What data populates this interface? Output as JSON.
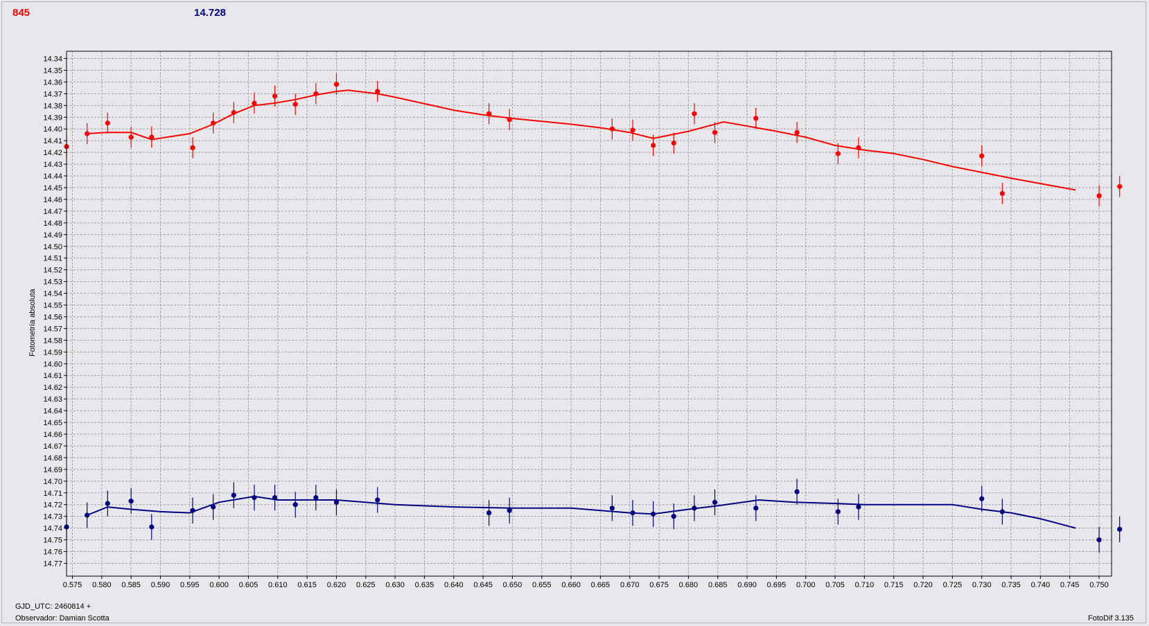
{
  "header": {
    "value_red": "845",
    "value_blue": "14.728"
  },
  "footer": {
    "gjd_label": "GJD_UTC: 2460814 +",
    "observer_label": "Observador: Damian Scotta",
    "app_version": "FotoDif 3.135"
  },
  "colors": {
    "series_red": "#ff0000",
    "series_blue": "#000080",
    "grid": "#a0a0a0",
    "plot_bg": "#e8e8ec"
  },
  "chart_data": {
    "type": "scatter",
    "title": "",
    "xlabel": "",
    "ylabel": "Fotometría absoluta",
    "xlim": [
      0.5735,
      0.7535
    ],
    "ylim": [
      14.34,
      14.777
    ],
    "y_inverted": true,
    "grid": true,
    "x_ticks": [
      "0.575",
      "0.580",
      "0.585",
      "0.590",
      "0.595",
      "0.600",
      "0.605",
      "0.610",
      "0.615",
      "0.620",
      "0.625",
      "0.630",
      "0.635",
      "0.640",
      "0.645",
      "0.650",
      "0.655",
      "0.660",
      "0.665",
      "0.670",
      "0.675",
      "0.680",
      "0.685",
      "0.690",
      "0.695",
      "0.700",
      "0.705",
      "0.710",
      "0.715",
      "0.720",
      "0.725",
      "0.730",
      "0.735",
      "0.740",
      "0.745",
      "0.750"
    ],
    "y_ticks": [
      "14.34",
      "14.35",
      "14.36",
      "14.37",
      "14.38",
      "14.39",
      "14.40",
      "14.41",
      "14.42",
      "14.43",
      "14.44",
      "14.45",
      "14.46",
      "14.47",
      "14.48",
      "14.49",
      "14.50",
      "14.51",
      "14.52",
      "14.53",
      "14.54",
      "14.55",
      "14.56",
      "14.57",
      "14.58",
      "14.59",
      "14.60",
      "14.61",
      "14.62",
      "14.63",
      "14.64",
      "14.65",
      "14.66",
      "14.67",
      "14.68",
      "14.69",
      "14.70",
      "14.71",
      "14.72",
      "14.73",
      "14.74",
      "14.75",
      "14.76",
      "14.77"
    ],
    "series": [
      {
        "color": "#ff0000",
        "error": 0.009,
        "x": [
          0.574,
          0.5775,
          0.581,
          0.585,
          0.5885,
          0.5955,
          0.599,
          0.6025,
          0.606,
          0.6095,
          0.613,
          0.6165,
          0.62,
          0.627,
          0.646,
          0.6495,
          0.667,
          0.6705,
          0.674,
          0.6775,
          0.681,
          0.6845,
          0.6915,
          0.6985,
          0.7055,
          0.709,
          0.73,
          0.7335,
          0.75,
          0.7535
        ],
        "y": [
          14.415,
          14.404,
          14.395,
          14.407,
          14.407,
          14.416,
          14.395,
          14.386,
          14.378,
          14.372,
          14.379,
          14.37,
          14.362,
          14.368,
          14.387,
          14.392,
          14.4,
          14.401,
          14.414,
          14.412,
          14.387,
          14.403,
          14.391,
          14.403,
          14.421,
          14.416,
          14.423,
          14.455,
          14.457,
          14.449
        ],
        "trend_x": [
          0.5775,
          0.581,
          0.585,
          0.5885,
          0.595,
          0.599,
          0.6025,
          0.606,
          0.6095,
          0.613,
          0.6165,
          0.62,
          0.622,
          0.627,
          0.63,
          0.64,
          0.645,
          0.65,
          0.66,
          0.665,
          0.67,
          0.674,
          0.68,
          0.686,
          0.695,
          0.7,
          0.705,
          0.71,
          0.715,
          0.72,
          0.725,
          0.73,
          0.735,
          0.746
        ],
        "trend_y": [
          14.404,
          14.403,
          14.403,
          14.409,
          14.404,
          14.396,
          14.387,
          14.38,
          14.378,
          14.375,
          14.371,
          14.368,
          14.367,
          14.37,
          14.373,
          14.384,
          14.388,
          14.391,
          14.396,
          14.399,
          14.403,
          14.408,
          14.402,
          14.394,
          14.402,
          14.407,
          14.414,
          14.418,
          14.421,
          14.426,
          14.432,
          14.437,
          14.442,
          14.452
        ]
      },
      {
        "color": "#000080",
        "error": 0.011,
        "x": [
          0.574,
          0.5775,
          0.581,
          0.585,
          0.5885,
          0.5955,
          0.599,
          0.6025,
          0.606,
          0.6095,
          0.613,
          0.6165,
          0.62,
          0.627,
          0.646,
          0.6495,
          0.667,
          0.6705,
          0.674,
          0.6775,
          0.681,
          0.6845,
          0.6915,
          0.6985,
          0.7055,
          0.709,
          0.73,
          0.7335,
          0.75,
          0.7535
        ],
        "y": [
          14.739,
          14.729,
          14.719,
          14.717,
          14.739,
          14.725,
          14.722,
          14.712,
          14.714,
          14.714,
          14.72,
          14.714,
          14.718,
          14.716,
          14.727,
          14.725,
          14.723,
          14.727,
          14.728,
          14.73,
          14.723,
          14.718,
          14.723,
          14.709,
          14.726,
          14.722,
          14.715,
          14.726,
          14.75,
          14.741
        ],
        "trend_x": [
          0.5775,
          0.581,
          0.585,
          0.59,
          0.595,
          0.6,
          0.606,
          0.61,
          0.62,
          0.63,
          0.64,
          0.65,
          0.66,
          0.67,
          0.674,
          0.68,
          0.685,
          0.692,
          0.698,
          0.705,
          0.71,
          0.715,
          0.72,
          0.725,
          0.73,
          0.735,
          0.74,
          0.746
        ],
        "trend_y": [
          14.729,
          14.722,
          14.724,
          14.726,
          14.727,
          14.718,
          14.713,
          14.716,
          14.716,
          14.72,
          14.722,
          14.723,
          14.723,
          14.727,
          14.728,
          14.724,
          14.721,
          14.716,
          14.718,
          14.719,
          14.72,
          14.72,
          14.72,
          14.72,
          14.724,
          14.727,
          14.732,
          14.74
        ]
      }
    ]
  }
}
